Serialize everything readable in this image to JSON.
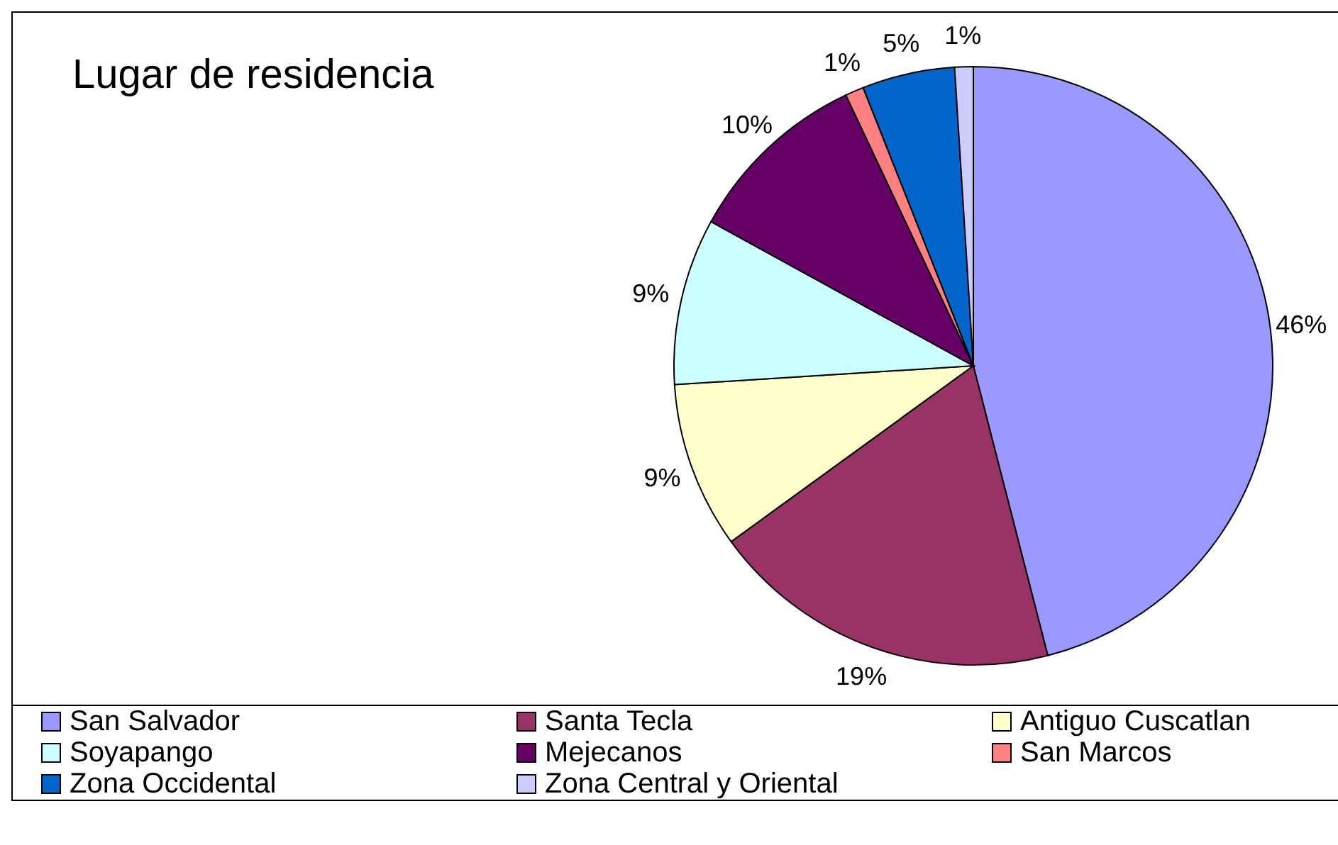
{
  "chart_data": {
    "type": "pie",
    "title": "Lugar de residencia",
    "categories": [
      "San Salvador",
      "Santa Tecla",
      "Antiguo Cuscatlan",
      "Soyapango",
      "Mejecanos",
      "San Marcos",
      "Zona Occidental",
      "Zona Central y Oriental"
    ],
    "values": [
      46,
      19,
      9,
      9,
      10,
      1,
      5,
      1
    ],
    "value_labels": [
      "46%",
      "19%",
      "9%",
      "9%",
      "10%",
      "1%",
      "5%",
      "1%"
    ],
    "colors": [
      "#9999ff",
      "#993366",
      "#ffffcc",
      "#ccffff",
      "#660066",
      "#ff8080",
      "#0066cc",
      "#ccccff"
    ],
    "legend": "bottom"
  }
}
